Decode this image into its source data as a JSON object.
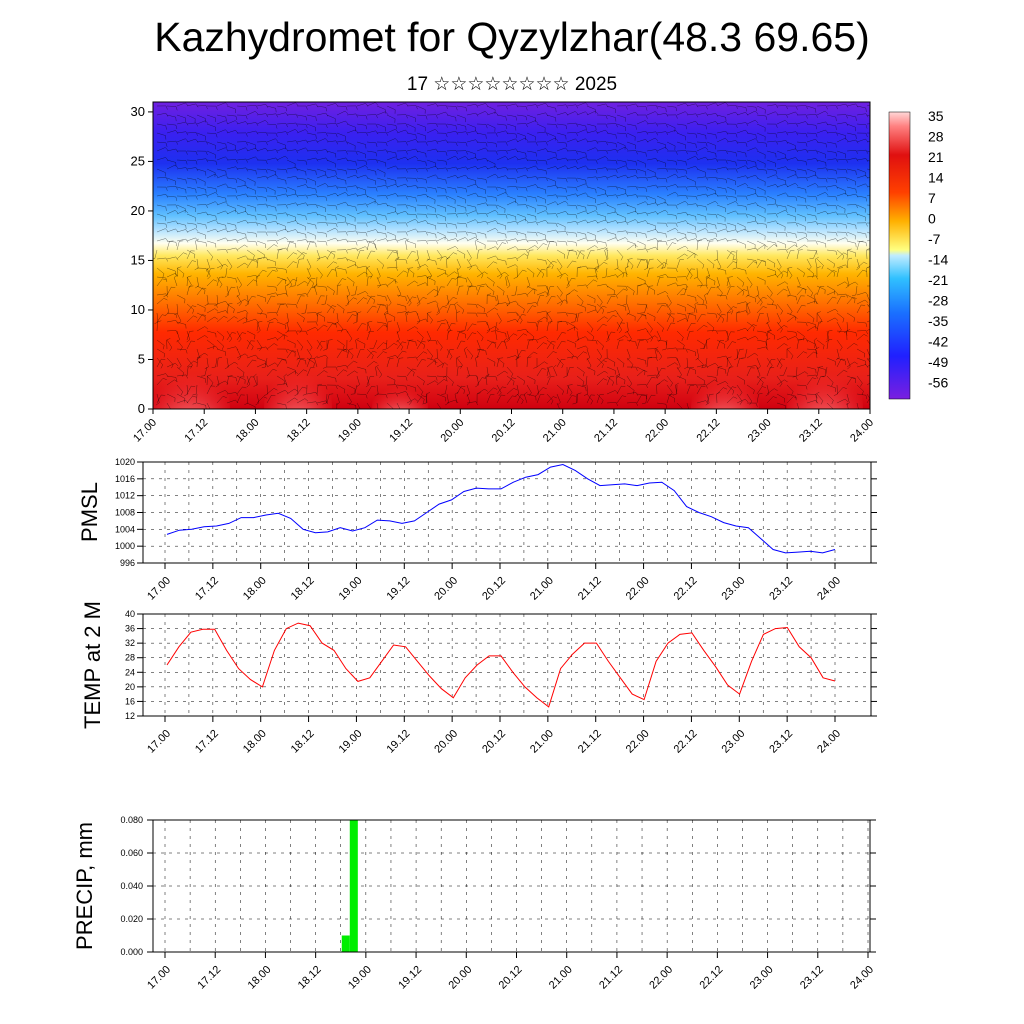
{
  "title": "Kazhydromet for Qyzylzhar(48.3 69.65)",
  "subtitle": "17 ☆☆☆☆☆☆☆☆ 2025",
  "chart_data": [
    {
      "type": "heatmap",
      "name": "vertical-section",
      "x_ticks": [
        "17.00",
        "17.12",
        "18.00",
        "18.12",
        "19.00",
        "19.12",
        "20.00",
        "20.12",
        "21.00",
        "21.12",
        "22.00",
        "22.12",
        "23.00",
        "23.12",
        "24.00"
      ],
      "y_ticks": [
        0,
        5,
        10,
        15,
        20,
        25,
        30
      ],
      "ylim": [
        0,
        31
      ],
      "colorbar_labels": [
        "35",
        "28",
        "21",
        "14",
        "7",
        "0",
        "-7",
        "-14",
        "-21",
        "-28",
        "-35",
        "-42",
        "-49",
        "-56"
      ],
      "colors": {
        "warm_max": "#ffd0d0",
        "warm": "#e31a1c",
        "mid": "#ff8a00",
        "neutral": "#ffff80",
        "cool": "#80d0ff",
        "cold": "#2040ff",
        "cold_max": "#7a1fe0"
      }
    },
    {
      "type": "line",
      "name": "pmsl",
      "ylabel": "PMSL",
      "ylim": [
        996,
        1020
      ],
      "y_ticks": [
        "996",
        "1000",
        "1004",
        "1008",
        "1012",
        "1016",
        "1020"
      ],
      "x_ticks": [
        "17.00",
        "17.12",
        "18.00",
        "18.12",
        "19.00",
        "19.12",
        "20.00",
        "20.12",
        "21.00",
        "21.12",
        "22.00",
        "22.12",
        "23.00",
        "23.12",
        "24.00"
      ],
      "color": "#0000ff",
      "values": [
        1002.8,
        1003.8,
        1004.0,
        1004.6,
        1004.8,
        1005.4,
        1006.8,
        1006.8,
        1007.4,
        1007.8,
        1006.6,
        1004.0,
        1003.2,
        1003.4,
        1004.4,
        1003.6,
        1004.4,
        1006.2,
        1006.0,
        1005.4,
        1006.0,
        1008.0,
        1010.0,
        1011.0,
        1013.0,
        1013.8,
        1013.6,
        1013.6,
        1015.2,
        1016.4,
        1017.0,
        1018.8,
        1019.4,
        1018.0,
        1016.0,
        1014.4,
        1014.6,
        1014.8,
        1014.4,
        1015.0,
        1015.2,
        1013.2,
        1009.4,
        1008.0,
        1007.0,
        1005.6,
        1004.8,
        1004.4,
        1001.8,
        999.2,
        998.4,
        998.6,
        998.8,
        998.4,
        999.2
      ]
    },
    {
      "type": "line",
      "name": "temp",
      "ylabel": "TEMP at 2 M",
      "ylim": [
        12,
        40
      ],
      "y_ticks": [
        "12",
        "16",
        "20",
        "24",
        "28",
        "32",
        "36",
        "40"
      ],
      "x_ticks": [
        "17.00",
        "17.12",
        "18.00",
        "18.12",
        "19.00",
        "19.12",
        "20.00",
        "20.12",
        "21.00",
        "21.12",
        "22.00",
        "22.12",
        "23.00",
        "23.12",
        "24.00"
      ],
      "color": "#ff0000",
      "values": [
        26,
        31,
        35,
        35.8,
        35.8,
        30,
        25,
        22,
        20,
        30,
        36,
        37.5,
        36.8,
        32,
        30,
        25,
        21.5,
        22.5,
        27,
        31.5,
        31,
        27,
        23,
        19.5,
        17,
        22.5,
        26,
        28.5,
        28.5,
        24,
        20,
        17,
        14.5,
        25,
        29,
        32,
        32,
        27,
        22.5,
        18,
        16.5,
        27,
        32,
        34.4,
        34.8,
        30,
        25.5,
        20.5,
        18,
        27,
        34.4,
        36,
        36.3,
        31,
        28,
        22.5,
        21.6
      ]
    },
    {
      "type": "bar",
      "name": "precip",
      "ylabel": "PRECIP, mm",
      "ylim": [
        0,
        0.08
      ],
      "y_ticks": [
        "0.000",
        "0.020",
        "0.040",
        "0.060",
        "0.080"
      ],
      "x_ticks": [
        "17.00",
        "17.12",
        "18.00",
        "18.12",
        "19.00",
        "19.12",
        "20.00",
        "20.12",
        "21.00",
        "21.12",
        "22.00",
        "22.12",
        "23.00",
        "23.12",
        "24.00"
      ],
      "color": "#00ee00",
      "bars": [
        {
          "t_start": 1.76,
          "t_end": 1.84,
          "value": 0.01
        },
        {
          "t_start": 1.84,
          "t_end": 1.92,
          "value": 0.08
        }
      ]
    }
  ]
}
